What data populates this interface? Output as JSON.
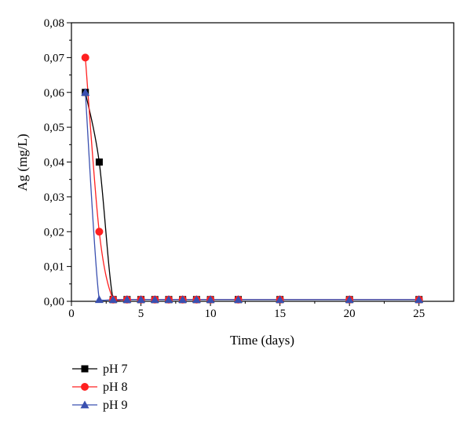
{
  "chart_data": {
    "type": "line",
    "title": "",
    "xlabel": "Time (days)",
    "ylabel": "Ag (mg/L)",
    "xlim": [
      0,
      27.5
    ],
    "ylim": [
      0,
      0.08
    ],
    "xticks": [
      0,
      5,
      10,
      15,
      20,
      25
    ],
    "xtick_labels": [
      "0",
      "5",
      "10",
      "15",
      "20",
      "25"
    ],
    "yticks": [
      0,
      0.01,
      0.02,
      0.03,
      0.04,
      0.05,
      0.06,
      0.07,
      0.08
    ],
    "ytick_labels": [
      "0,00",
      "0,01",
      "0,02",
      "0,03",
      "0,04",
      "0,05",
      "0,06",
      "0,07",
      "0,08"
    ],
    "grid": false,
    "legend_position": "bottom-left, below plot",
    "series": [
      {
        "name": "pH 7",
        "color": "#000000",
        "marker": "square",
        "x": [
          1,
          2,
          3,
          4,
          5,
          6,
          7,
          8,
          9,
          10,
          12,
          15,
          20,
          25
        ],
        "y": [
          0.06,
          0.04,
          0.0005,
          0.0005,
          0.0005,
          0.0005,
          0.0005,
          0.0005,
          0.0005,
          0.0005,
          0.0005,
          0.0005,
          0.0005,
          0.0005
        ]
      },
      {
        "name": "pH 8",
        "color": "#ff2020",
        "marker": "circle",
        "x": [
          1,
          2,
          3,
          4,
          5,
          6,
          7,
          8,
          9,
          10,
          12,
          15,
          20,
          25
        ],
        "y": [
          0.07,
          0.02,
          0.0005,
          0.0005,
          0.0005,
          0.0005,
          0.0005,
          0.0005,
          0.0005,
          0.0005,
          0.0005,
          0.0005,
          0.0005,
          0.0005
        ]
      },
      {
        "name": "pH 9",
        "color": "#3a50b0",
        "marker": "triangle",
        "x": [
          1,
          2,
          3,
          4,
          5,
          6,
          7,
          8,
          9,
          10,
          12,
          15,
          20,
          25
        ],
        "y": [
          0.06,
          0.0005,
          0.0005,
          0.0005,
          0.0005,
          0.0005,
          0.0005,
          0.0005,
          0.0005,
          0.0005,
          0.0005,
          0.0005,
          0.0005,
          0.0005
        ]
      }
    ]
  }
}
